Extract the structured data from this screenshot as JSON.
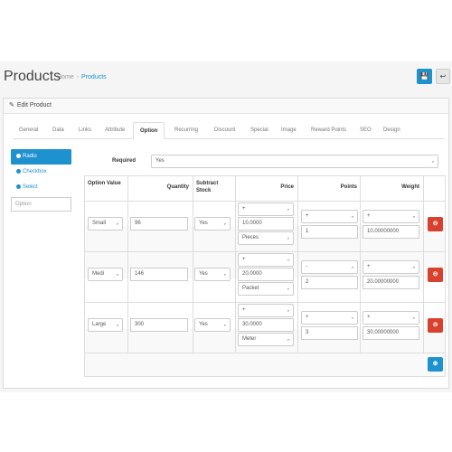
{
  "page": {
    "title": "Products",
    "breadcrumbs": [
      "Home",
      "Products"
    ],
    "save_icon": "floppy-disk-icon",
    "back_icon": "reply-icon"
  },
  "panel": {
    "title": "Edit Product",
    "tabs": [
      "General",
      "Data",
      "Links",
      "Attribute",
      "Option",
      "Recurring",
      "Discount",
      "Special",
      "Image",
      "Reward Points",
      "SEO",
      "Design"
    ],
    "active_tab": "Option"
  },
  "sidebar": {
    "items": [
      "Radio",
      "Checkbox",
      "Select"
    ],
    "active_item": "Radio",
    "option_placeholder": "Option"
  },
  "form": {
    "required_label": "Required",
    "required_value": "Yes"
  },
  "table": {
    "headers": {
      "option_value": "Option Value",
      "quantity": "Quantity",
      "subtract": "Subtract Stock",
      "price": "Price",
      "points": "Points",
      "weight": "Weight"
    },
    "rows": [
      {
        "value": "Small",
        "quantity": "96",
        "subtract": "Yes",
        "price_prefix": "+",
        "price": "10.0000",
        "unit": "Pieces",
        "points_prefix": "+",
        "points": "1",
        "weight_prefix": "+",
        "weight": "10.00000000"
      },
      {
        "value": "Medi",
        "quantity": "146",
        "subtract": "Yes",
        "price_prefix": "+",
        "price": "20.0000",
        "unit": "Packet",
        "points_prefix": "-",
        "points": "2",
        "weight_prefix": "+",
        "weight": "20.00000000"
      },
      {
        "value": "Large",
        "quantity": "300",
        "subtract": "Yes",
        "price_prefix": "+",
        "price": "30.0000",
        "unit": "Meter",
        "points_prefix": "+",
        "points": "3",
        "weight_prefix": "+",
        "weight": "30.00000000"
      }
    ],
    "remove_icon": "minus-circle-icon",
    "add_icon": "plus-circle-icon"
  },
  "colors": {
    "primary": "#1e91cf",
    "danger": "#d9412f"
  }
}
